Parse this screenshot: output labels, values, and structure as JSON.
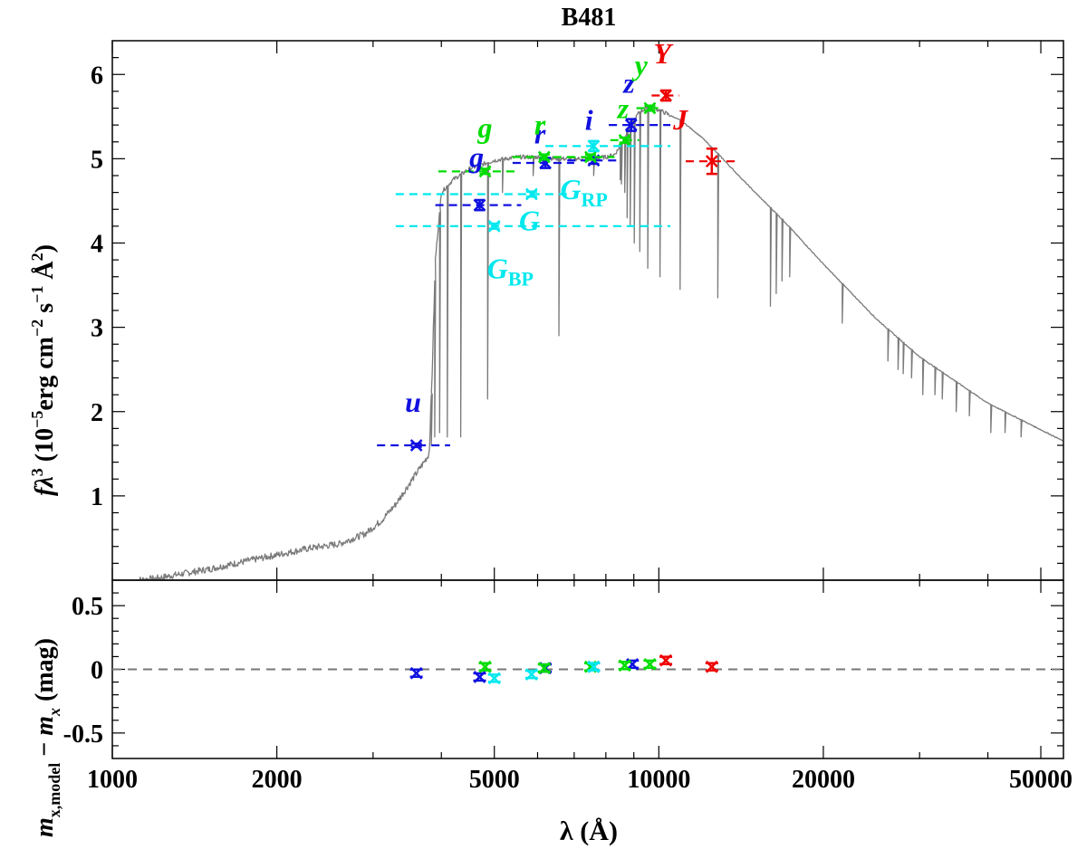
{
  "chart_data": {
    "type": "sed",
    "title": "B481",
    "xlabel": "λ (Å)",
    "x_scale": "log",
    "xlim": [
      1000,
      55000
    ],
    "x_ticks": [
      1000,
      2000,
      5000,
      10000,
      20000,
      50000
    ],
    "x_tick_labels": [
      "1000",
      "2000",
      "5000",
      "10000",
      "20000",
      "50000"
    ],
    "colors": {
      "model": "#7a7a7a",
      "sdss": "#1010e0",
      "panstarrs": "#00dd00",
      "gaia": "#00e8ee",
      "ir": "#ee0000",
      "zero_line": "#777777"
    },
    "top_panel": {
      "ylabel_parts": {
        "f": "f",
        "lambda": "λ",
        "pow3": "3",
        "open": " (10",
        "exp5": "−5",
        "erg": "erg cm",
        "exp2": "−2",
        "s": " s",
        "exp1": "−1",
        "ang": " Å",
        "expA2": "2",
        "close": ")"
      },
      "ylim": [
        0,
        6.4
      ],
      "y_ticks": [
        1,
        2,
        3,
        4,
        5,
        6
      ],
      "y_tick_labels": [
        "1",
        "2",
        "3",
        "4",
        "5",
        "6"
      ],
      "model_continuum": [
        [
          1100,
          0.0
        ],
        [
          1200,
          0.02
        ],
        [
          1300,
          0.06
        ],
        [
          1500,
          0.13
        ],
        [
          1800,
          0.24
        ],
        [
          2000,
          0.3
        ],
        [
          2300,
          0.38
        ],
        [
          2600,
          0.43
        ],
        [
          2900,
          0.55
        ],
        [
          3100,
          0.7
        ],
        [
          3300,
          0.9
        ],
        [
          3500,
          1.15
        ],
        [
          3700,
          1.38
        ],
        [
          3800,
          1.5
        ],
        [
          3850,
          2.5
        ],
        [
          3900,
          3.8
        ],
        [
          4000,
          4.6
        ],
        [
          4200,
          4.75
        ],
        [
          4500,
          4.88
        ],
        [
          5000,
          4.98
        ],
        [
          5500,
          5.02
        ],
        [
          6000,
          5.02
        ],
        [
          6500,
          5.0
        ],
        [
          7000,
          5.0
        ],
        [
          7500,
          5.0
        ],
        [
          8000,
          5.02
        ],
        [
          8300,
          5.05
        ],
        [
          8500,
          5.15
        ],
        [
          8800,
          5.35
        ],
        [
          9200,
          5.55
        ],
        [
          9600,
          5.62
        ],
        [
          10000,
          5.58
        ],
        [
          11000,
          5.45
        ],
        [
          12000,
          5.25
        ],
        [
          13000,
          5.02
        ],
        [
          14000,
          4.8
        ],
        [
          15000,
          4.6
        ],
        [
          17000,
          4.25
        ],
        [
          20000,
          3.75
        ],
        [
          25000,
          3.1
        ],
        [
          30000,
          2.65
        ],
        [
          40000,
          2.1
        ],
        [
          55000,
          1.65
        ]
      ],
      "absorption_lines": [
        [
          3835,
          1.6
        ],
        [
          3890,
          1.7
        ],
        [
          3970,
          1.75
        ],
        [
          4102,
          1.7
        ],
        [
          4340,
          1.7
        ],
        [
          4861,
          2.15
        ],
        [
          5175,
          4.6
        ],
        [
          5890,
          4.8
        ],
        [
          6563,
          2.9
        ],
        [
          7600,
          4.8
        ],
        [
          8500,
          4.75
        ],
        [
          8542,
          4.7
        ],
        [
          8662,
          4.6
        ],
        [
          8750,
          4.3
        ],
        [
          8863,
          4.2
        ],
        [
          9015,
          4.0
        ],
        [
          9229,
          3.9
        ],
        [
          9546,
          3.7
        ],
        [
          10049,
          3.6
        ],
        [
          10938,
          3.45
        ],
        [
          12818,
          3.35
        ],
        [
          16000,
          3.25
        ],
        [
          16400,
          3.4
        ],
        [
          16800,
          3.55
        ],
        [
          17360,
          3.6
        ],
        [
          21655,
          3.05
        ],
        [
          26250,
          2.6
        ],
        [
          27400,
          2.5
        ],
        [
          28000,
          2.45
        ],
        [
          29000,
          2.4
        ],
        [
          30400,
          2.2
        ],
        [
          32000,
          2.2
        ],
        [
          33000,
          2.15
        ],
        [
          35000,
          2.0
        ],
        [
          37000,
          1.95
        ],
        [
          40500,
          1.75
        ],
        [
          43000,
          1.75
        ],
        [
          46000,
          1.7
        ]
      ],
      "photometry": [
        {
          "band": "u",
          "survey": "sdss",
          "x": 3600,
          "y": 1.6,
          "xerr": [
            3050,
            4150
          ],
          "yerr": 0.02
        },
        {
          "band": "g",
          "survey": "sdss",
          "x": 4700,
          "y": 4.45,
          "xerr": [
            3900,
            5600
          ],
          "yerr": 0.06
        },
        {
          "band": "r",
          "survey": "sdss",
          "x": 6200,
          "y": 4.95,
          "xerr": [
            5400,
            7000
          ],
          "yerr": 0.06
        },
        {
          "band": "i",
          "survey": "sdss",
          "x": 7600,
          "y": 4.98,
          "xerr": [
            6800,
            8400
          ],
          "yerr": 0.04
        },
        {
          "band": "z",
          "survey": "sdss",
          "x": 8900,
          "y": 5.4,
          "xerr": [
            8100,
            10500
          ],
          "yerr": 0.07
        },
        {
          "band": "g",
          "survey": "panstarrs",
          "x": 4810,
          "y": 4.85,
          "xerr": [
            3950,
            5500
          ],
          "yerr": 0.03
        },
        {
          "band": "r",
          "survey": "panstarrs",
          "x": 6170,
          "y": 5.02,
          "xerr": [
            5400,
            7000
          ],
          "yerr": 0.03
        },
        {
          "band": "i",
          "survey": "panstarrs",
          "x": 7500,
          "y": 5.02,
          "xerr": [
            6800,
            8300
          ],
          "yerr": 0.03
        },
        {
          "band": "z",
          "survey": "panstarrs",
          "x": 8660,
          "y": 5.22,
          "xerr": [
            8150,
            9200
          ],
          "yerr": 0.03
        },
        {
          "band": "y",
          "survey": "panstarrs",
          "x": 9630,
          "y": 5.6,
          "xerr": [
            9100,
            10100
          ],
          "yerr": 0.03
        },
        {
          "band": "G",
          "survey": "gaia",
          "x": 5000,
          "y": 4.2,
          "xerr": [
            3300,
            10500
          ],
          "yerr": 0.03
        },
        {
          "band": "GBP",
          "survey": "gaia",
          "x": 5850,
          "y": 4.58,
          "xerr": [
            3300,
            6800
          ],
          "yerr": 0.03
        },
        {
          "band": "GRP",
          "survey": "gaia",
          "x": 7600,
          "y": 5.15,
          "xerr": [
            6200,
            10500
          ],
          "yerr": 0.06
        },
        {
          "band": "Y",
          "survey": "ir",
          "x": 10300,
          "y": 5.75,
          "xerr": [
            9700,
            10900
          ],
          "yerr": 0.06
        },
        {
          "band": "J",
          "survey": "ir",
          "x": 12500,
          "y": 4.97,
          "xerr": [
            11200,
            14000
          ],
          "yerr": 0.15
        }
      ],
      "band_labels": [
        {
          "text": "u",
          "color": "sdss",
          "x": 3550,
          "y": 2.0
        },
        {
          "text": "g",
          "color": "sdss",
          "x": 4640,
          "y": 4.9
        },
        {
          "text": "r",
          "color": "sdss",
          "x": 6060,
          "y": 5.18
        },
        {
          "text": "i",
          "color": "sdss",
          "x": 7450,
          "y": 5.34
        },
        {
          "text": "z",
          "color": "sdss",
          "x": 8820,
          "y": 5.78
        },
        {
          "text": "g",
          "color": "panstarrs",
          "x": 4810,
          "y": 5.25
        },
        {
          "text": "r",
          "color": "panstarrs",
          "x": 6060,
          "y": 5.29
        },
        {
          "text": "z",
          "color": "panstarrs",
          "x": 8600,
          "y": 5.48
        },
        {
          "text": "y",
          "color": "panstarrs",
          "x": 9280,
          "y": 6.0
        },
        {
          "text": "Y",
          "color": "ir",
          "x": 10150,
          "y": 6.13
        },
        {
          "text": "J",
          "color": "ir",
          "x": 10950,
          "y": 5.35
        }
      ],
      "gaia_labels": [
        {
          "main": "G",
          "sub": "",
          "x": 5550,
          "y": 4.15
        },
        {
          "main": "G",
          "sub": "BP",
          "x": 4850,
          "y": 3.58
        },
        {
          "main": "G",
          "sub": "RP",
          "x": 6600,
          "y": 4.52
        }
      ]
    },
    "bottom_panel": {
      "ylabel_parts": {
        "m": "m",
        "sub": "x,model",
        "minus": " − ",
        "m2": "m",
        "sub2": "x",
        "unit": " (mag)"
      },
      "ylim": [
        -0.7,
        0.7
      ],
      "y_ticks": [
        0.5,
        0,
        -0.5
      ],
      "y_tick_labels": [
        "0.5",
        "0",
        "-0.5"
      ],
      "residuals": [
        {
          "survey": "sdss",
          "x": 3600,
          "y": -0.03
        },
        {
          "survey": "sdss",
          "x": 4700,
          "y": -0.06
        },
        {
          "survey": "sdss",
          "x": 6200,
          "y": 0.01
        },
        {
          "survey": "sdss",
          "x": 7600,
          "y": 0.02
        },
        {
          "survey": "sdss",
          "x": 8950,
          "y": 0.04
        },
        {
          "survey": "panstarrs",
          "x": 4810,
          "y": 0.02
        },
        {
          "survey": "panstarrs",
          "x": 6170,
          "y": 0.01
        },
        {
          "survey": "panstarrs",
          "x": 7500,
          "y": 0.02
        },
        {
          "survey": "panstarrs",
          "x": 8660,
          "y": 0.03
        },
        {
          "survey": "panstarrs",
          "x": 9630,
          "y": 0.04
        },
        {
          "survey": "gaia",
          "x": 5000,
          "y": -0.07
        },
        {
          "survey": "gaia",
          "x": 5850,
          "y": -0.04
        },
        {
          "survey": "gaia",
          "x": 7600,
          "y": 0.02
        },
        {
          "survey": "ir",
          "x": 10300,
          "y": 0.07
        },
        {
          "survey": "ir",
          "x": 12500,
          "y": 0.02
        }
      ]
    }
  }
}
